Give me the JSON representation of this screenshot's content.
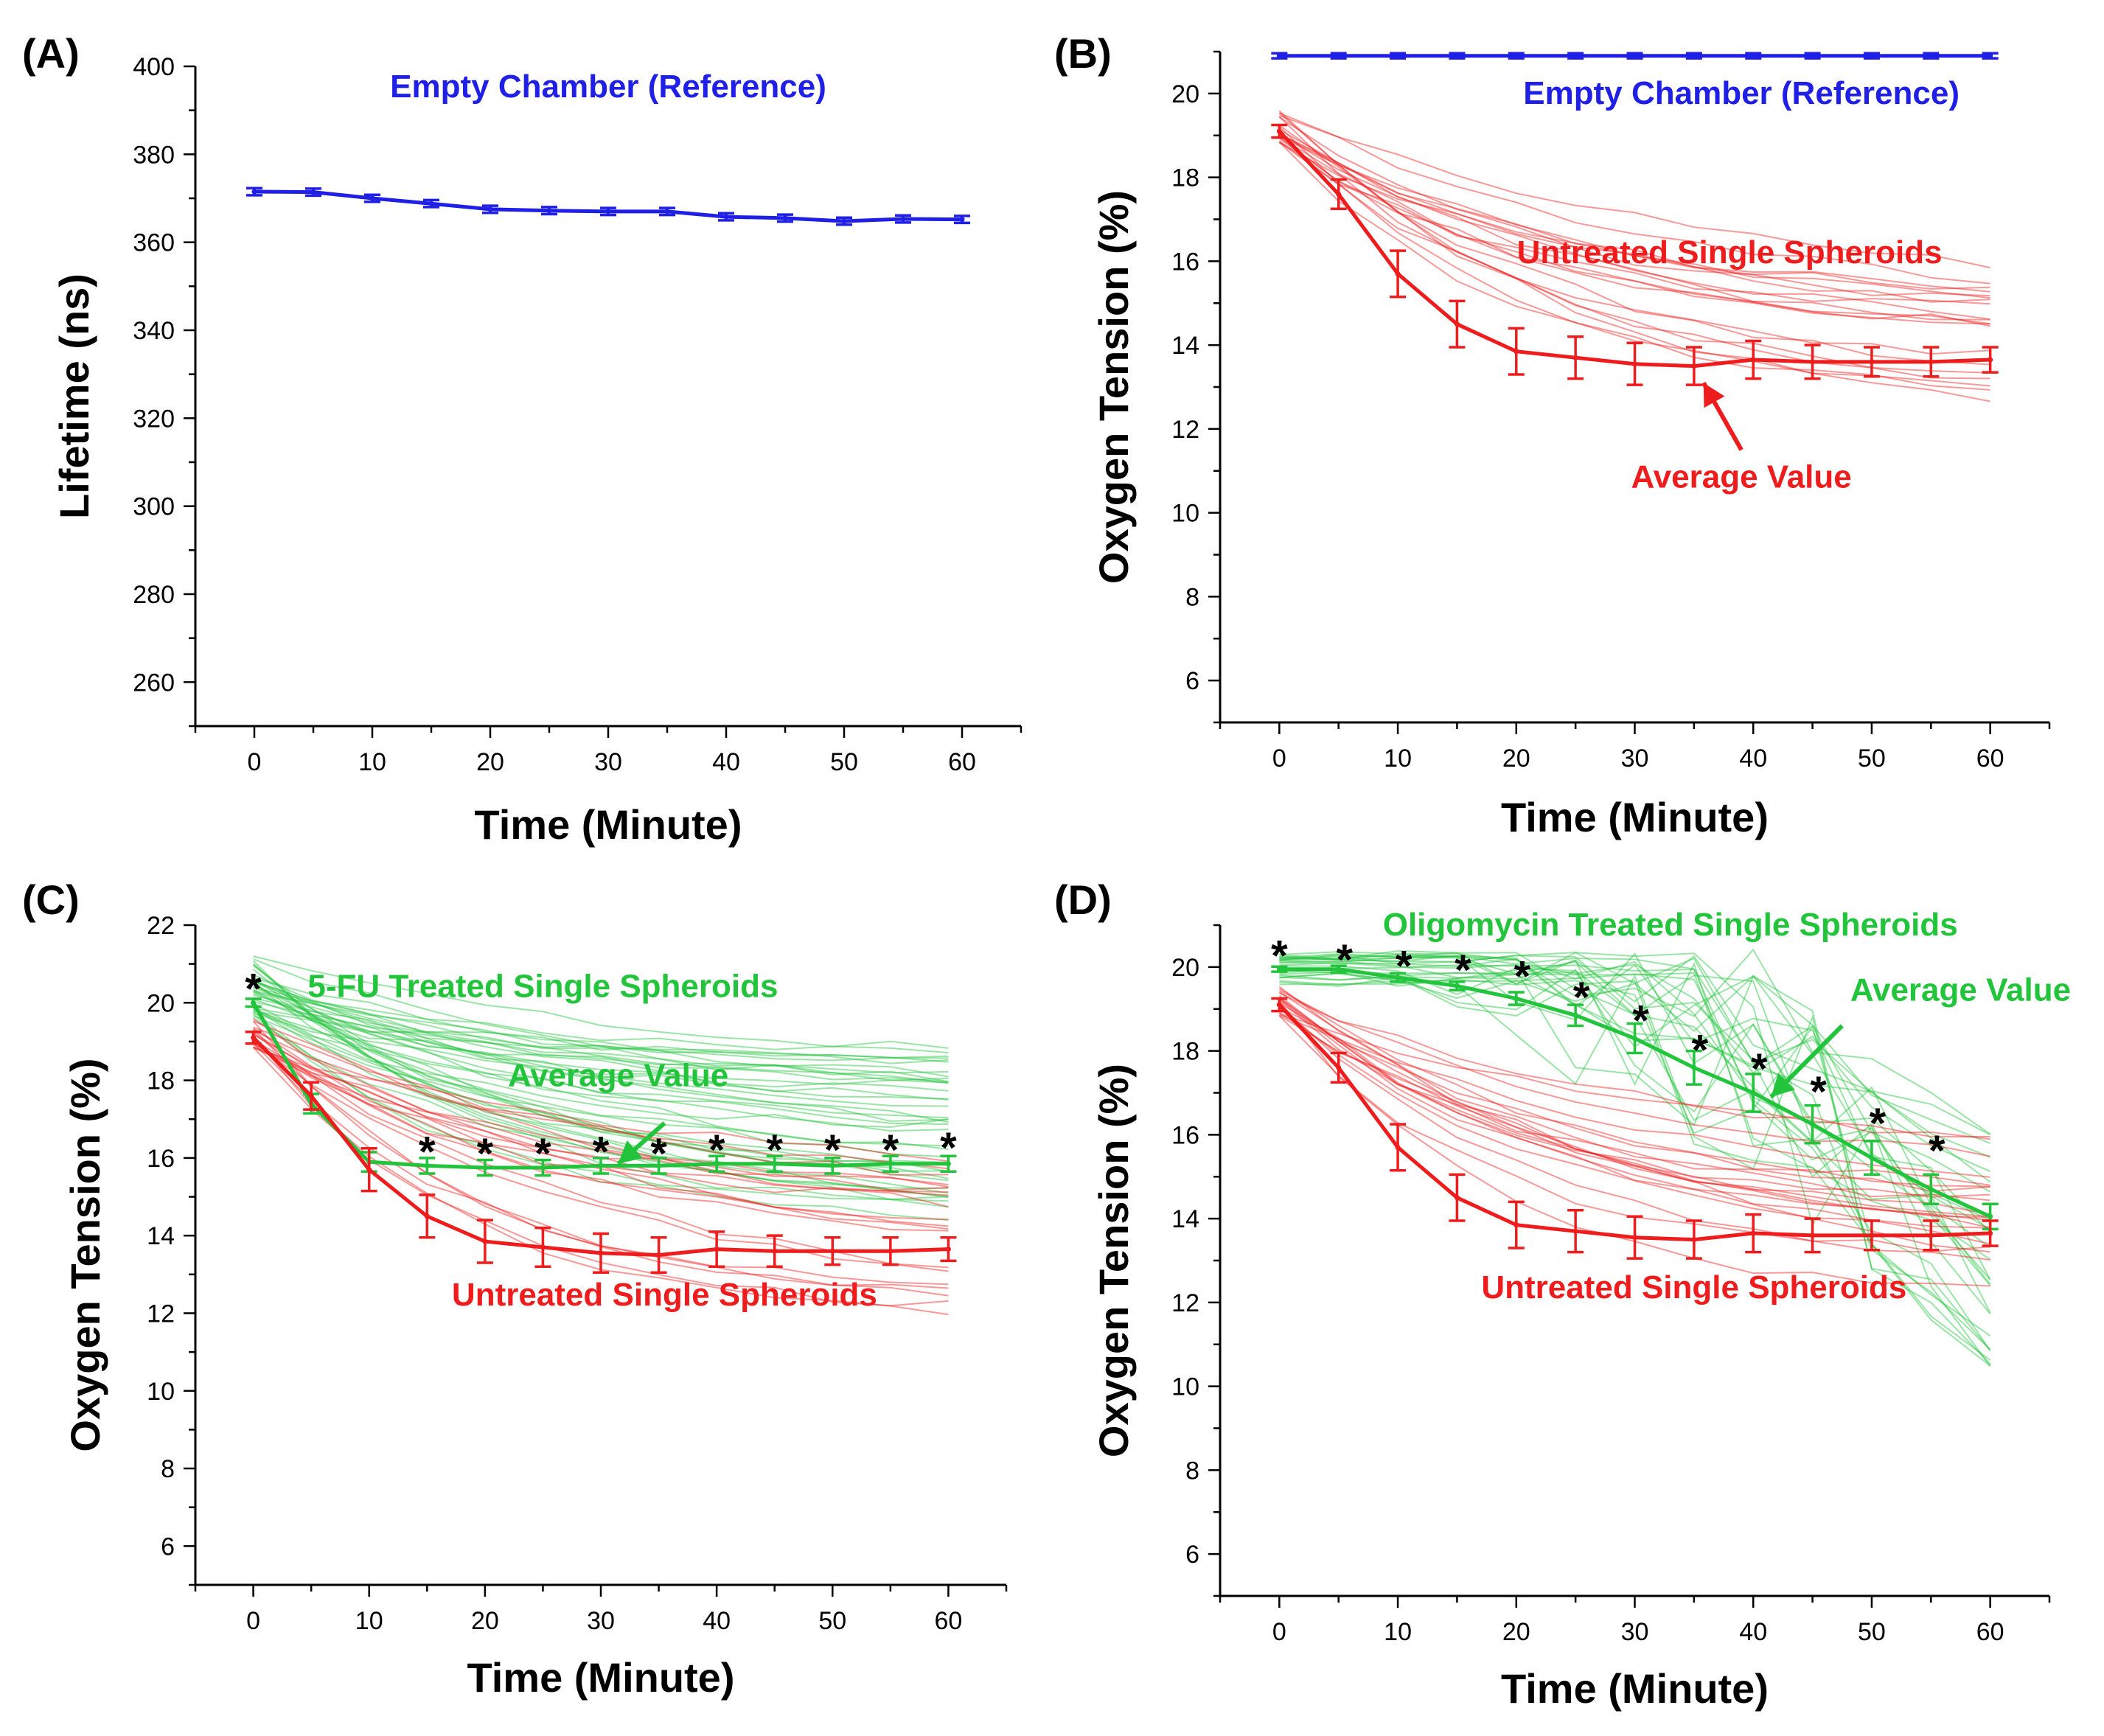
{
  "chart_data": [
    {
      "panel": "(A)",
      "type": "line",
      "xlabel": "Time (Minute)",
      "ylabel": "Lifetime (ns)",
      "xlim": [
        -5,
        65
      ],
      "ylim": [
        250,
        400
      ],
      "xticks": [
        0,
        10,
        20,
        30,
        40,
        50,
        60
      ],
      "yticks": [
        260,
        280,
        300,
        320,
        340,
        360,
        380,
        400
      ],
      "annotations": [
        {
          "text": "Empty Chamber (Reference)",
          "color": "#1f1fe6",
          "x": 30,
          "y": 393
        }
      ],
      "series": [
        {
          "name": "Empty Chamber (Reference)",
          "color": "#1f1fe6",
          "x": [
            0,
            5,
            10,
            15,
            20,
            25,
            30,
            35,
            40,
            45,
            50,
            55,
            60
          ],
          "y": [
            371.5,
            371.4,
            370,
            368.8,
            367.5,
            367.2,
            367,
            367,
            365.8,
            365.5,
            364.8,
            365.3,
            365.2
          ],
          "err": [
            0.8,
            0.8,
            0.8,
            0.8,
            0.8,
            0.8,
            0.8,
            0.8,
            0.8,
            0.8,
            0.8,
            0.8,
            0.8
          ]
        }
      ],
      "stars": []
    },
    {
      "panel": "(B)",
      "type": "line",
      "xlabel": "Time (Minute)",
      "ylabel": "Oxygen Tension (%)",
      "xlim": [
        -5,
        65
      ],
      "ylim": [
        5,
        21
      ],
      "xticks": [
        0,
        10,
        20,
        30,
        40,
        50,
        60
      ],
      "yticks": [
        6,
        8,
        10,
        12,
        14,
        16,
        18,
        20
      ],
      "annotations": [
        {
          "text": "Empty Chamber (Reference)",
          "color": "#1f1fe6",
          "x": 39,
          "y": 19.75
        },
        {
          "text": "Untreated Single Spheroids",
          "color": "#ee1c1c",
          "x": 38,
          "y": 15.95
        },
        {
          "text": "Average Value",
          "color": "#ee1c1c",
          "x": 39,
          "y": 10.6
        }
      ],
      "arrows": [
        {
          "color": "#ee1c1c",
          "from": [
            39,
            11.5
          ],
          "to": [
            35.8,
            13.1
          ]
        }
      ],
      "series": [
        {
          "name": "Empty Chamber (Reference)",
          "color": "#1f1fe6",
          "x": [
            0,
            5,
            10,
            15,
            20,
            25,
            30,
            35,
            40,
            45,
            50,
            55,
            60
          ],
          "y": [
            20.9,
            20.9,
            20.9,
            20.9,
            20.9,
            20.9,
            20.9,
            20.9,
            20.9,
            20.9,
            20.9,
            20.9,
            20.9
          ],
          "err": [
            0.06,
            0.06,
            0.06,
            0.06,
            0.06,
            0.06,
            0.06,
            0.06,
            0.06,
            0.06,
            0.06,
            0.06,
            0.06
          ]
        },
        {
          "name": "Untreated Single Spheroids (Average Value)",
          "color": "#ee1c1c",
          "x": [
            0,
            5,
            10,
            15,
            20,
            25,
            30,
            35,
            40,
            45,
            50,
            55,
            60
          ],
          "y": [
            19.1,
            17.6,
            15.7,
            14.5,
            13.85,
            13.7,
            13.55,
            13.5,
            13.65,
            13.6,
            13.6,
            13.6,
            13.65
          ],
          "err": [
            0.15,
            0.35,
            0.55,
            0.55,
            0.55,
            0.5,
            0.5,
            0.45,
            0.45,
            0.4,
            0.35,
            0.35,
            0.3
          ]
        }
      ],
      "individual_traces": [
        {
          "group": "Untreated Single Spheroids",
          "color": "#ee1c1c",
          "count": 20,
          "start_range": [
            18.8,
            19.6
          ],
          "end_range": [
            11.8,
            15.2
          ]
        }
      ],
      "stars": []
    },
    {
      "panel": "(C)",
      "type": "line",
      "xlabel": "Time (Minute)",
      "ylabel": "Oxygen Tension (%)",
      "xlim": [
        -5,
        65
      ],
      "ylim": [
        5,
        22
      ],
      "xticks": [
        0,
        10,
        20,
        30,
        40,
        50,
        60
      ],
      "yticks": [
        6,
        8,
        10,
        12,
        14,
        16,
        18,
        20,
        22
      ],
      "annotations": [
        {
          "text": "5-FU Treated Single Spheroids",
          "color": "#22c43c",
          "x": 25,
          "y": 20.15
        },
        {
          "text": "Average Value",
          "color": "#22c43c",
          "x": 31.5,
          "y": 17.85
        },
        {
          "text": "Untreated Single Spheroids",
          "color": "#ee1c1c",
          "x": 35.5,
          "y": 12.2
        }
      ],
      "arrows": [
        {
          "color": "#22c43c",
          "from": [
            35.5,
            16.9
          ],
          "to": [
            31.5,
            15.85
          ]
        }
      ],
      "series": [
        {
          "name": "5-FU Treated Single Spheroids (Average Value)",
          "color": "#22c43c",
          "x": [
            0,
            5,
            10,
            15,
            20,
            25,
            30,
            35,
            40,
            45,
            50,
            55,
            60
          ],
          "y": [
            20,
            17.4,
            15.9,
            15.8,
            15.75,
            15.75,
            15.8,
            15.8,
            15.85,
            15.85,
            15.8,
            15.85,
            15.85
          ],
          "err": [
            0.1,
            0.25,
            0.25,
            0.2,
            0.2,
            0.2,
            0.2,
            0.2,
            0.2,
            0.2,
            0.2,
            0.2,
            0.2
          ]
        },
        {
          "name": "Untreated Single Spheroids (Average Value)",
          "color": "#ee1c1c",
          "x": [
            0,
            5,
            10,
            15,
            20,
            25,
            30,
            35,
            40,
            45,
            50,
            55,
            60
          ],
          "y": [
            19.1,
            17.6,
            15.7,
            14.5,
            13.85,
            13.7,
            13.55,
            13.5,
            13.65,
            13.6,
            13.6,
            13.6,
            13.65
          ],
          "err": [
            0.15,
            0.35,
            0.55,
            0.55,
            0.55,
            0.5,
            0.5,
            0.45,
            0.45,
            0.4,
            0.35,
            0.35,
            0.3
          ]
        }
      ],
      "individual_traces": [
        {
          "group": "5-FU Treated Single Spheroids",
          "color": "#22c43c",
          "count": 40,
          "start_range": [
            19.6,
            21.2
          ],
          "end_range": [
            14.2,
            18.7
          ]
        },
        {
          "group": "Untreated Single Spheroids",
          "color": "#ee1c1c",
          "count": 20,
          "start_range": [
            18.8,
            19.6
          ],
          "end_range": [
            11.8,
            15.2
          ]
        }
      ],
      "stars": [
        {
          "x": 0,
          "y": 20.55
        },
        {
          "x": 15,
          "y": 16.35
        },
        {
          "x": 20,
          "y": 16.3
        },
        {
          "x": 25,
          "y": 16.3
        },
        {
          "x": 30,
          "y": 16.35
        },
        {
          "x": 35,
          "y": 16.3
        },
        {
          "x": 40,
          "y": 16.4
        },
        {
          "x": 45,
          "y": 16.4
        },
        {
          "x": 50,
          "y": 16.4
        },
        {
          "x": 55,
          "y": 16.4
        },
        {
          "x": 60,
          "y": 16.45
        }
      ]
    },
    {
      "panel": "(D)",
      "type": "line",
      "xlabel": "Time (Minute)",
      "ylabel": "Oxygen Tension (%)",
      "xlim": [
        -5,
        65
      ],
      "ylim": [
        5,
        21
      ],
      "xticks": [
        0,
        10,
        20,
        30,
        40,
        50,
        60
      ],
      "yticks": [
        6,
        8,
        10,
        12,
        14,
        16,
        18,
        20
      ],
      "annotations": [
        {
          "text": "Oligomycin Treated Single Spheroids",
          "color": "#22c43c",
          "x": 33,
          "y": 20.75
        },
        {
          "text": "Average Value",
          "color": "#22c43c",
          "x": 57.5,
          "y": 19.2
        },
        {
          "text": "Untreated Single Spheroids",
          "color": "#ee1c1c",
          "x": 35,
          "y": 12.1
        }
      ],
      "arrows": [
        {
          "color": "#22c43c",
          "from": [
            47.5,
            18.6
          ],
          "to": [
            41.5,
            16.9
          ]
        }
      ],
      "series": [
        {
          "name": "Oligomycin Treated Single Spheroids (Average Value)",
          "color": "#22c43c",
          "x": [
            0,
            5,
            10,
            15,
            20,
            25,
            30,
            35,
            40,
            45,
            50,
            55,
            60
          ],
          "y": [
            19.95,
            19.95,
            19.75,
            19.55,
            19.25,
            18.85,
            18.3,
            17.6,
            17.0,
            16.25,
            15.45,
            14.7,
            14.05
          ],
          "err": [
            0.06,
            0.08,
            0.1,
            0.1,
            0.15,
            0.25,
            0.35,
            0.4,
            0.45,
            0.45,
            0.4,
            0.35,
            0.3
          ]
        },
        {
          "name": "Untreated Single Spheroids (Average Value)",
          "color": "#ee1c1c",
          "x": [
            0,
            5,
            10,
            15,
            20,
            25,
            30,
            35,
            40,
            45,
            50,
            55,
            60
          ],
          "y": [
            19.1,
            17.6,
            15.7,
            14.5,
            13.85,
            13.7,
            13.55,
            13.5,
            13.65,
            13.6,
            13.6,
            13.6,
            13.65
          ],
          "err": [
            0.15,
            0.35,
            0.55,
            0.55,
            0.55,
            0.5,
            0.5,
            0.45,
            0.45,
            0.4,
            0.35,
            0.35,
            0.3
          ]
        }
      ],
      "individual_traces": [
        {
          "group": "Oligomycin Treated Single Spheroids",
          "color": "#22c43c",
          "count": 26,
          "start_range": [
            19.5,
            20.3
          ],
          "end_range": [
            9.8,
            16.6
          ]
        },
        {
          "group": "Untreated Single Spheroids",
          "color": "#ee1c1c",
          "count": 20,
          "start_range": [
            18.8,
            19.6
          ],
          "end_range": [
            11.8,
            15.2
          ]
        }
      ],
      "stars": [
        {
          "x": 0,
          "y": 20.45
        },
        {
          "x": 5.5,
          "y": 20.35
        },
        {
          "x": 10.5,
          "y": 20.2
        },
        {
          "x": 15.5,
          "y": 20.1
        },
        {
          "x": 20.5,
          "y": 19.95
        },
        {
          "x": 25.5,
          "y": 19.45
        },
        {
          "x": 30.5,
          "y": 18.9
        },
        {
          "x": 35.5,
          "y": 18.2
        },
        {
          "x": 40.5,
          "y": 17.75
        },
        {
          "x": 45.5,
          "y": 17.2
        },
        {
          "x": 50.5,
          "y": 16.45
        },
        {
          "x": 55.5,
          "y": 15.8
        }
      ]
    }
  ]
}
